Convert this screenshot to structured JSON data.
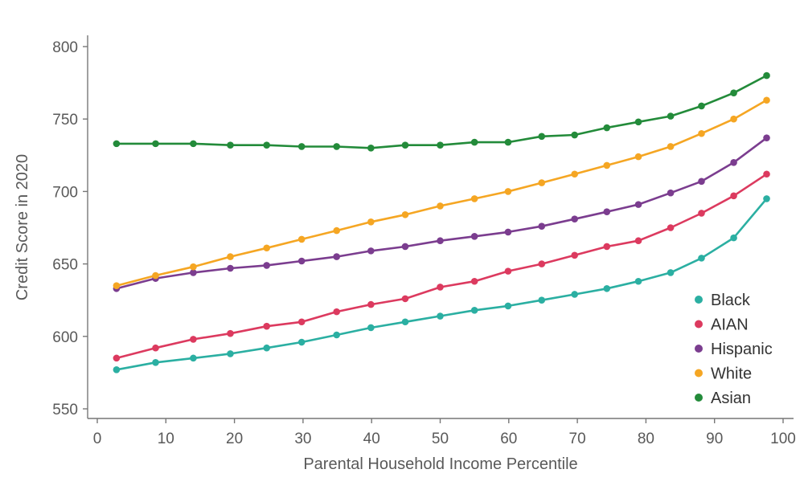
{
  "chart_data": {
    "type": "line",
    "title": "",
    "xlabel": "Parental Household Income Percentile",
    "ylabel": "Credit Score in 2020",
    "xlim": [
      0,
      100
    ],
    "ylim": [
      545,
      805
    ],
    "xticks": [
      0,
      10,
      20,
      30,
      40,
      50,
      60,
      70,
      80,
      90,
      100
    ],
    "yticks": [
      550,
      600,
      650,
      700,
      750,
      800
    ],
    "grid": false,
    "legend_position": "bottom-right",
    "x": [
      2.8,
      8.5,
      14.0,
      19.4,
      24.7,
      29.8,
      34.9,
      39.9,
      44.9,
      50.0,
      55.0,
      59.9,
      64.8,
      69.6,
      74.3,
      78.9,
      83.6,
      88.1,
      92.8,
      97.6
    ],
    "series": [
      {
        "name": "Black",
        "color": "#2BAFA2",
        "values": [
          577,
          582,
          585,
          588,
          592,
          596,
          601,
          606,
          610,
          614,
          618,
          621,
          625,
          629,
          633,
          638,
          644,
          654,
          668,
          695
        ]
      },
      {
        "name": "AIAN",
        "color": "#DC3A5F",
        "values": [
          585,
          592,
          598,
          602,
          607,
          610,
          617,
          622,
          626,
          634,
          638,
          645,
          650,
          656,
          662,
          666,
          675,
          685,
          697,
          712
        ]
      },
      {
        "name": "Hispanic",
        "color": "#7B3D8F",
        "values": [
          633,
          640,
          644,
          647,
          649,
          652,
          655,
          659,
          662,
          666,
          669,
          672,
          676,
          681,
          686,
          691,
          699,
          707,
          720,
          737
        ]
      },
      {
        "name": "White",
        "color": "#F5A623",
        "values": [
          635,
          642,
          648,
          655,
          661,
          667,
          673,
          679,
          684,
          690,
          695,
          700,
          706,
          712,
          718,
          724,
          731,
          740,
          750,
          763
        ]
      },
      {
        "name": "Asian",
        "color": "#238B3A",
        "values": [
          733,
          733,
          733,
          732,
          732,
          731,
          731,
          730,
          732,
          732,
          734,
          734,
          738,
          739,
          744,
          748,
          752,
          759,
          768,
          780
        ]
      }
    ],
    "legend_order": [
      "Black",
      "AIAN",
      "Hispanic",
      "White",
      "Asian"
    ]
  }
}
